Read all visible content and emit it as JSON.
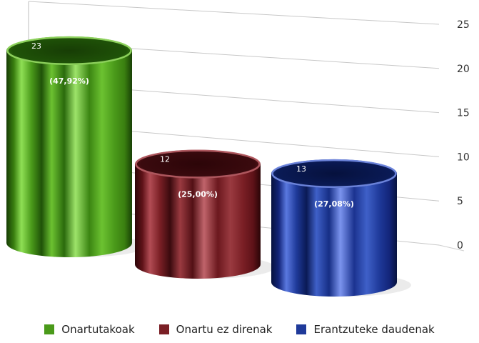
{
  "chart_data": {
    "type": "bar",
    "categories": [
      "Onartutakoak",
      "Onartu ez direnak",
      "Erantzuteke daudenak"
    ],
    "values": [
      23,
      12,
      13
    ],
    "value_labels": [
      "23",
      "12",
      "13"
    ],
    "percent_labels": [
      "(47,92%)",
      "(25,00%)",
      "(27,08%)"
    ],
    "ylim": [
      0,
      25
    ],
    "yticks": [
      "0",
      "5",
      "10",
      "15",
      "20",
      "25"
    ],
    "grid": true,
    "legend_position": "bottom",
    "colors": [
      "#4a9a1a",
      "#7a1f25",
      "#1f3a9a"
    ]
  }
}
